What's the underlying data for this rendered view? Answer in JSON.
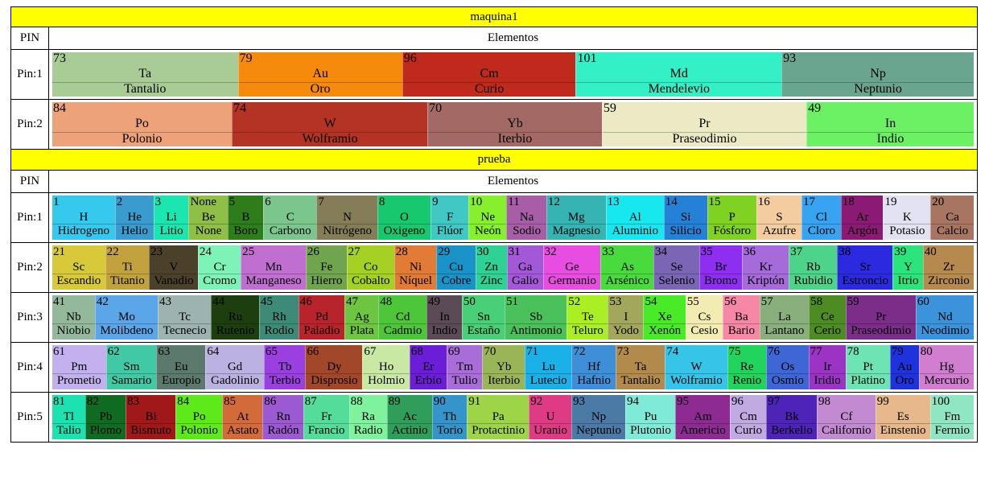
{
  "sections": [
    {
      "title": "maquina1",
      "pin_header": "PIN",
      "elements_header": "Elementos",
      "rows": [
        {
          "pin": "Pin:1",
          "cells": [
            {
              "num": "73",
              "sym": "Ta",
              "name": "Tantalio",
              "color": "#a9cc96"
            },
            {
              "num": "79",
              "sym": "Au",
              "name": "Oro",
              "color": "#f68a0c"
            },
            {
              "num": "96",
              "sym": "Cm",
              "name": "Curio",
              "color": "#c02a1c"
            },
            {
              "num": "101",
              "sym": "Md",
              "name": "Mendelevio",
              "color": "#33f0c6"
            },
            {
              "num": "93",
              "sym": "Np",
              "name": "Neptunio",
              "color": "#6aa58f"
            }
          ]
        },
        {
          "pin": "Pin:2",
          "cells": [
            {
              "num": "84",
              "sym": "Po",
              "name": "Polonio",
              "color": "#eda27a"
            },
            {
              "num": "74",
              "sym": "W",
              "name": "Wolframio",
              "color": "#b43325"
            },
            {
              "num": "70",
              "sym": "Yb",
              "name": "Iterbio",
              "color": "#a26965"
            },
            {
              "num": "59",
              "sym": "Pr",
              "name": "Praseodimio",
              "color": "#eceac4"
            },
            {
              "num": "49",
              "sym": "In",
              "name": "Indio",
              "color": "#6cf064"
            }
          ]
        }
      ]
    },
    {
      "title": "prueba",
      "pin_header": "PIN",
      "elements_header": "Elementos",
      "rows": [
        {
          "pin": "Pin:1",
          "cells": [
            {
              "num": "1",
              "sym": "H",
              "name": "Hidrogeno",
              "color": "#36c9ee"
            },
            {
              "num": "2",
              "sym": "He",
              "name": "Helio",
              "color": "#3a9bcf"
            },
            {
              "num": "3",
              "sym": "Li",
              "name": "Litio",
              "color": "#1ce6b0"
            },
            {
              "num": "None",
              "sym": "Be",
              "name": "None",
              "color": "#8fbf46"
            },
            {
              "num": "5",
              "sym": "B",
              "name": "Boro",
              "color": "#2e7d1b"
            },
            {
              "num": "6",
              "sym": "C",
              "name": "Carbono",
              "color": "#7bc68d"
            },
            {
              "num": "7",
              "sym": "N",
              "name": "Nitrógeno",
              "color": "#857d58"
            },
            {
              "num": "8",
              "sym": "O",
              "name": "Oxigeno",
              "color": "#18c86f"
            },
            {
              "num": "9",
              "sym": "F",
              "name": "Flúor",
              "color": "#3fc8c4"
            },
            {
              "num": "10",
              "sym": "Ne",
              "name": "Neón",
              "color": "#86ef2e"
            },
            {
              "num": "11",
              "sym": "Na",
              "name": "Sodio",
              "color": "#a75ea6"
            },
            {
              "num": "12",
              "sym": "Mg",
              "name": "Magnesio",
              "color": "#35b4b3"
            },
            {
              "num": "13",
              "sym": "Al",
              "name": "Aluminio",
              "color": "#17e8f0"
            },
            {
              "num": "14",
              "sym": "Si",
              "name": "Silicio",
              "color": "#2581d6"
            },
            {
              "num": "15",
              "sym": "P",
              "name": "Fósforo",
              "color": "#7fd221"
            },
            {
              "num": "16",
              "sym": "S",
              "name": "Azufre",
              "color": "#f3cda0"
            },
            {
              "num": "17",
              "sym": "Cl",
              "name": "Cloro",
              "color": "#37a3f1"
            },
            {
              "num": "18",
              "sym": "Ar",
              "name": "Argón",
              "color": "#8b1a74"
            },
            {
              "num": "19",
              "sym": "K",
              "name": "Potasio",
              "color": "#e3e2f3"
            },
            {
              "num": "20",
              "sym": "Ca",
              "name": "Calcio",
              "color": "#a77561"
            }
          ]
        },
        {
          "pin": "Pin:2",
          "cells": [
            {
              "num": "21",
              "sym": "Sc",
              "name": "Escandio",
              "color": "#d7c93a"
            },
            {
              "num": "22",
              "sym": "Ti",
              "name": "Titanio",
              "color": "#c2a23c"
            },
            {
              "num": "23",
              "sym": "V",
              "name": "Vanadio",
              "color": "#4b402a"
            },
            {
              "num": "24",
              "sym": "Cr",
              "name": "Cromo",
              "color": "#7ef3b8"
            },
            {
              "num": "25",
              "sym": "Mn",
              "name": "Manganeso",
              "color": "#c06fd0"
            },
            {
              "num": "26",
              "sym": "Fe",
              "name": "Hierro",
              "color": "#71a44f"
            },
            {
              "num": "27",
              "sym": "Co",
              "name": "Cobalto",
              "color": "#a5d024"
            },
            {
              "num": "28",
              "sym": "Ni",
              "name": "Níquel",
              "color": "#e17b36"
            },
            {
              "num": "29",
              "sym": "Cu",
              "name": "Cobre",
              "color": "#1a93c9"
            },
            {
              "num": "30",
              "sym": "Zn",
              "name": "Zinc",
              "color": "#2fd294"
            },
            {
              "num": "31",
              "sym": "Ga",
              "name": "Galio",
              "color": "#a358d8"
            },
            {
              "num": "32",
              "sym": "Ge",
              "name": "Germanio",
              "color": "#e84de2"
            },
            {
              "num": "33",
              "sym": "As",
              "name": "Arsénico",
              "color": "#49da3e"
            },
            {
              "num": "34",
              "sym": "Se",
              "name": "Selenio",
              "color": "#7b66b5"
            },
            {
              "num": "35",
              "sym": "Br",
              "name": "Bromo",
              "color": "#8e2ef0"
            },
            {
              "num": "36",
              "sym": "Kr",
              "name": "Kriptón",
              "color": "#a56bda"
            },
            {
              "num": "37",
              "sym": "Rb",
              "name": "Rubidio",
              "color": "#4ed38a"
            },
            {
              "num": "38",
              "sym": "Sr",
              "name": "Estroncio",
              "color": "#2b2ae0"
            },
            {
              "num": "39",
              "sym": "Y",
              "name": "Itrio",
              "color": "#2ce47c"
            },
            {
              "num": "40",
              "sym": "Zr",
              "name": "Zirconio",
              "color": "#b68a4e"
            }
          ]
        },
        {
          "pin": "Pin:3",
          "cells": [
            {
              "num": "41",
              "sym": "Nb",
              "name": "Niobio",
              "color": "#93b89c"
            },
            {
              "num": "42",
              "sym": "Mo",
              "name": "Molibdeno",
              "color": "#5aa6e9"
            },
            {
              "num": "43",
              "sym": "Tc",
              "name": "Tecnecio",
              "color": "#9cb3b0"
            },
            {
              "num": "44",
              "sym": "Ru",
              "name": "Rutenio",
              "color": "#1d3f10"
            },
            {
              "num": "45",
              "sym": "Rh",
              "name": "Rodio",
              "color": "#3e8a78"
            },
            {
              "num": "46",
              "sym": "Pd",
              "name": "Paladio",
              "color": "#b8242c"
            },
            {
              "num": "47",
              "sym": "Ag",
              "name": "Plata",
              "color": "#6ec542"
            },
            {
              "num": "48",
              "sym": "Cd",
              "name": "Cadmio",
              "color": "#4ec63a"
            },
            {
              "num": "49",
              "sym": "In",
              "name": "Indio",
              "color": "#5a4b56"
            },
            {
              "num": "50",
              "sym": "Sn",
              "name": "Estaño",
              "color": "#48cf77"
            },
            {
              "num": "51",
              "sym": "Sb",
              "name": "Antimonio",
              "color": "#4ac15a"
            },
            {
              "num": "52",
              "sym": "Te",
              "name": "Teluro",
              "color": "#aaef24"
            },
            {
              "num": "53",
              "sym": "I",
              "name": "Yodo",
              "color": "#a2a75c"
            },
            {
              "num": "54",
              "sym": "Xe",
              "name": "Xenón",
              "color": "#49eb29"
            },
            {
              "num": "55",
              "sym": "Cs",
              "name": "Cesio",
              "color": "#f2ecb2"
            },
            {
              "num": "56",
              "sym": "Ba",
              "name": "Bario",
              "color": "#f687a5"
            },
            {
              "num": "57",
              "sym": "La",
              "name": "Lantano",
              "color": "#89b07c"
            },
            {
              "num": "58",
              "sym": "Ce",
              "name": "Cerio",
              "color": "#4d8c23"
            },
            {
              "num": "59",
              "sym": "Pr",
              "name": "Praseodimio",
              "color": "#7c2d8a"
            },
            {
              "num": "60",
              "sym": "Nd",
              "name": "Neodimio",
              "color": "#3a93db"
            }
          ]
        },
        {
          "pin": "Pin:4",
          "cells": [
            {
              "num": "61",
              "sym": "Pm",
              "name": "Prometio",
              "color": "#c2b0ef"
            },
            {
              "num": "62",
              "sym": "Sm",
              "name": "Samario",
              "color": "#41c9a5"
            },
            {
              "num": "63",
              "sym": "Eu",
              "name": "Europio",
              "color": "#5b7a6d"
            },
            {
              "num": "64",
              "sym": "Gd",
              "name": "Gadolinio",
              "color": "#bcb2e2"
            },
            {
              "num": "65",
              "sym": "Tb",
              "name": "Terbio",
              "color": "#9a3fe0"
            },
            {
              "num": "66",
              "sym": "Dy",
              "name": "Disprosio",
              "color": "#a3472a"
            },
            {
              "num": "67",
              "sym": "Ho",
              "name": "Holmio",
              "color": "#c9e8a4"
            },
            {
              "num": "68",
              "sym": "Er",
              "name": "Erbio",
              "color": "#6c1dd8"
            },
            {
              "num": "69",
              "sym": "Tm",
              "name": "Tulio",
              "color": "#a86dd8"
            },
            {
              "num": "70",
              "sym": "Yb",
              "name": "Iterbio",
              "color": "#9ab458"
            },
            {
              "num": "71",
              "sym": "Lu",
              "name": "Lutecio",
              "color": "#19b1e8"
            },
            {
              "num": "72",
              "sym": "Hf",
              "name": "Hafnio",
              "color": "#3f8ed8"
            },
            {
              "num": "73",
              "sym": "Ta",
              "name": "Tantalio",
              "color": "#b28a4c"
            },
            {
              "num": "74",
              "sym": "W",
              "name": "Wolframio",
              "color": "#36c5e9"
            },
            {
              "num": "75",
              "sym": "Re",
              "name": "Renio",
              "color": "#20d45e"
            },
            {
              "num": "76",
              "sym": "Os",
              "name": "Osmio",
              "color": "#3e66d4"
            },
            {
              "num": "77",
              "sym": "Ir",
              "name": "Iridio",
              "color": "#9b34c4"
            },
            {
              "num": "78",
              "sym": "Pt",
              "name": "Platino",
              "color": "#6ee4b2"
            },
            {
              "num": "79",
              "sym": "Au",
              "name": "Oro",
              "color": "#1f33dd"
            },
            {
              "num": "80",
              "sym": "Hg",
              "name": "Mercurio",
              "color": "#d17dd0"
            }
          ]
        },
        {
          "pin": "Pin:5",
          "cells": [
            {
              "num": "81",
              "sym": "Tl",
              "name": "Talio",
              "color": "#1be2b0"
            },
            {
              "num": "82",
              "sym": "Pb",
              "name": "Plomo",
              "color": "#0f6b22"
            },
            {
              "num": "83",
              "sym": "Bi",
              "name": "Bismuto",
              "color": "#a11818"
            },
            {
              "num": "84",
              "sym": "Po",
              "name": "Polonio",
              "color": "#5ee91a"
            },
            {
              "num": "85",
              "sym": "At",
              "name": "Astato",
              "color": "#d26a3a"
            },
            {
              "num": "86",
              "sym": "Rn",
              "name": "Radón",
              "color": "#9b5ad2"
            },
            {
              "num": "87",
              "sym": "Fr",
              "name": "Francio",
              "color": "#53dc9a"
            },
            {
              "num": "88",
              "sym": "Ra",
              "name": "Radio",
              "color": "#7ef29d"
            },
            {
              "num": "89",
              "sym": "Ac",
              "name": "Actinio",
              "color": "#2f9e5b"
            },
            {
              "num": "90",
              "sym": "Th",
              "name": "Torio",
              "color": "#3594c9"
            },
            {
              "num": "91",
              "sym": "Pa",
              "name": "Protactinio",
              "color": "#9ed548"
            },
            {
              "num": "92",
              "sym": "U",
              "name": "Uranio",
              "color": "#de3b84"
            },
            {
              "num": "93",
              "sym": "Np",
              "name": "Neptunio",
              "color": "#4a7aa5"
            },
            {
              "num": "94",
              "sym": "Pu",
              "name": "Plutonio",
              "color": "#7eead7"
            },
            {
              "num": "95",
              "sym": "Am",
              "name": "Americio",
              "color": "#8e2b93"
            },
            {
              "num": "96",
              "sym": "Cm",
              "name": "Curio",
              "color": "#c1a9e2"
            },
            {
              "num": "97",
              "sym": "Bk",
              "name": "Berkelio",
              "color": "#4d23b8"
            },
            {
              "num": "98",
              "sym": "Cf",
              "name": "Californio",
              "color": "#c28ad0"
            },
            {
              "num": "99",
              "sym": "Es",
              "name": "Einstenio",
              "color": "#e6b88c"
            },
            {
              "num": "100",
              "sym": "Fm",
              "name": "Fermio",
              "color": "#8fe6c2"
            }
          ]
        }
      ]
    }
  ]
}
